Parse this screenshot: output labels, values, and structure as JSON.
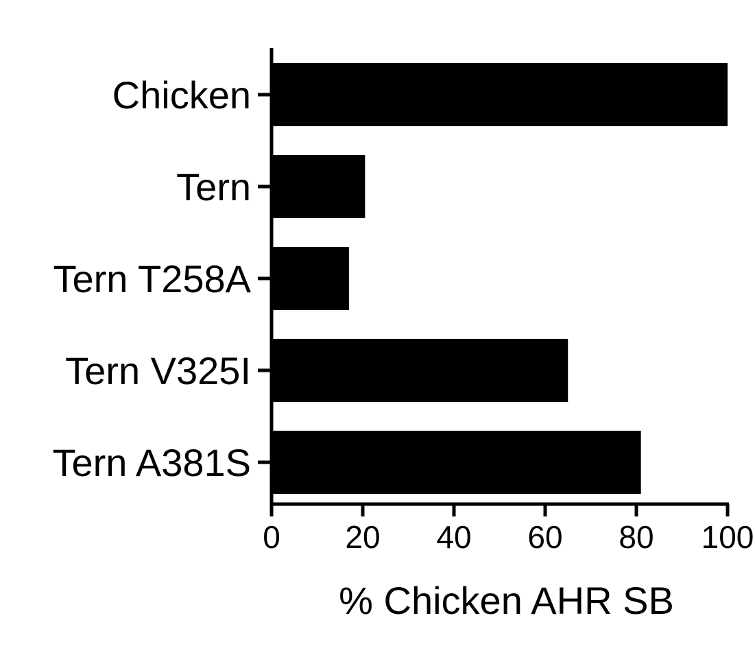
{
  "chart_data": {
    "type": "bar",
    "orientation": "horizontal",
    "categories": [
      "Chicken",
      "Tern",
      "Tern T258A",
      "Tern V325I",
      "Tern A381S"
    ],
    "values": [
      100,
      20.5,
      17,
      65,
      81
    ],
    "xlabel": "% Chicken AHR SB",
    "ylabel": "",
    "title": "",
    "xlim": [
      0,
      100
    ],
    "xticks": [
      0,
      20,
      40,
      60,
      80,
      100
    ],
    "grid": false,
    "legend": "none",
    "bar_color": "#000000"
  }
}
